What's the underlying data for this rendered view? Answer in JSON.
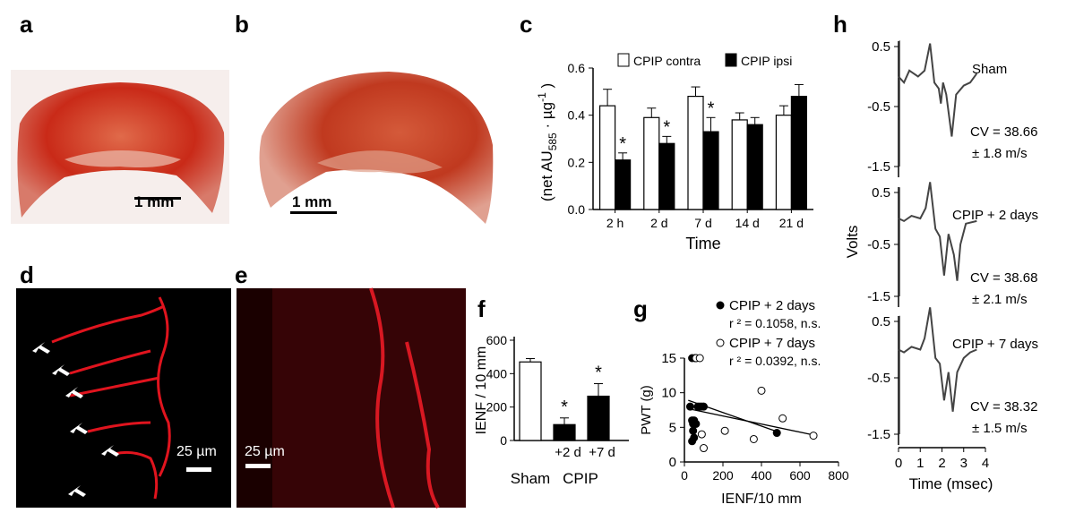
{
  "panels": [
    "a",
    "b",
    "c",
    "d",
    "e",
    "f",
    "g",
    "h"
  ],
  "photo_a": {
    "scale_text": "1 mm",
    "tint": "#c92a18"
  },
  "photo_b": {
    "scale_text": "1 mm",
    "tint": "#c0391f"
  },
  "photo_d": {
    "scale_text": "25 µm",
    "tint": "#e0141e"
  },
  "photo_e": {
    "scale_text": "25 µm",
    "tint": "#d81822"
  },
  "chart_data": [
    {
      "panel": "c",
      "type": "bar",
      "categories": [
        "2 h",
        "2 d",
        "7 d",
        "14 d",
        "21 d"
      ],
      "series": [
        {
          "name": "CPIP contra",
          "color": "#ffffff",
          "values": [
            0.44,
            0.39,
            0.48,
            0.38,
            0.4
          ],
          "errors": [
            0.07,
            0.04,
            0.04,
            0.03,
            0.04
          ]
        },
        {
          "name": "CPIP ipsi",
          "color": "#000000",
          "values": [
            0.21,
            0.28,
            0.33,
            0.36,
            0.48
          ],
          "errors": [
            0.03,
            0.03,
            0.06,
            0.03,
            0.05
          ]
        }
      ],
      "significance": [
        "*",
        "*",
        "*",
        "",
        ""
      ],
      "xlabel": "Time",
      "ylabel_main": "(net AU",
      "ylabel_sub": "585",
      "ylabel_mid": " · µg",
      "ylabel_sup": "-1",
      "ylabel_end": " )",
      "ylim": [
        0,
        0.6
      ],
      "yticks": [
        "0.0",
        "0.2",
        "0.4",
        "0.6"
      ]
    },
    {
      "panel": "f",
      "type": "bar",
      "categories": [
        "Sham",
        "+2 d",
        "+7 d"
      ],
      "group_label": "CPIP",
      "values": [
        470,
        95,
        265
      ],
      "errors": [
        20,
        40,
        75
      ],
      "colors": [
        "#ffffff",
        "#000000",
        "#000000"
      ],
      "significance": [
        "",
        "*",
        "*"
      ],
      "ylabel": "IENF / 10 mm",
      "ylim": [
        0,
        600
      ],
      "yticks": [
        "0",
        "200",
        "400",
        "600"
      ]
    },
    {
      "panel": "g",
      "type": "scatter",
      "xlabel": "IENF/10 mm",
      "ylabel": "PWT (g)",
      "xlim": [
        0,
        800
      ],
      "ylim": [
        0,
        15
      ],
      "xticks": [
        "0",
        "200",
        "400",
        "600",
        "800"
      ],
      "yticks": [
        "0",
        "5",
        "10",
        "15"
      ],
      "series": [
        {
          "name": "CPIP + 2 days",
          "stat": "r ² = 0.1058, n.s.",
          "filled": true,
          "x": [
            40,
            55,
            60,
            70,
            80,
            90,
            100,
            30,
            50,
            40,
            45,
            60,
            45,
            50,
            40,
            480
          ],
          "y": [
            15,
            15,
            15,
            8,
            8,
            8,
            8,
            8,
            6,
            6,
            5.5,
            5.5,
            4.5,
            3.5,
            3,
            4.2
          ],
          "fit": [
            [
              20,
              8.9
            ],
            [
              480,
              4.4
            ]
          ]
        },
        {
          "name": "CPIP + 7 days",
          "stat": "r ² = 0.0392, n.s.",
          "filled": false,
          "x": [
            60,
            80,
            90,
            100,
            210,
            360,
            400,
            510,
            670
          ],
          "y": [
            15,
            15,
            4,
            2,
            4.5,
            3.3,
            10.3,
            6.3,
            3.8
          ],
          "fit": [
            [
              20,
              7.7
            ],
            [
              670,
              3.9
            ]
          ]
        }
      ]
    },
    {
      "panel": "h",
      "type": "line",
      "ylabel": "Volts",
      "xlabel": "Time (msec)",
      "xticks": [
        "0",
        "1",
        "2",
        "3",
        "4"
      ],
      "traces": [
        {
          "name": "Sham",
          "cv": "CV = 38.66",
          "sd": "± 1.8 m/s",
          "yticks": [
            "0.5",
            "-0.5",
            "-1.5"
          ]
        },
        {
          "name": "CPIP + 2 days",
          "cv": "CV = 38.68",
          "sd": "±  2.1 m/s",
          "yticks": [
            "0.5",
            "-0.5",
            "-1.5"
          ]
        },
        {
          "name": "CPIP + 7 days",
          "cv": "CV = 38.32",
          "sd": "± 1.5 m/s",
          "yticks": [
            "0.5",
            "-0.5",
            "-1.5"
          ]
        }
      ]
    }
  ]
}
